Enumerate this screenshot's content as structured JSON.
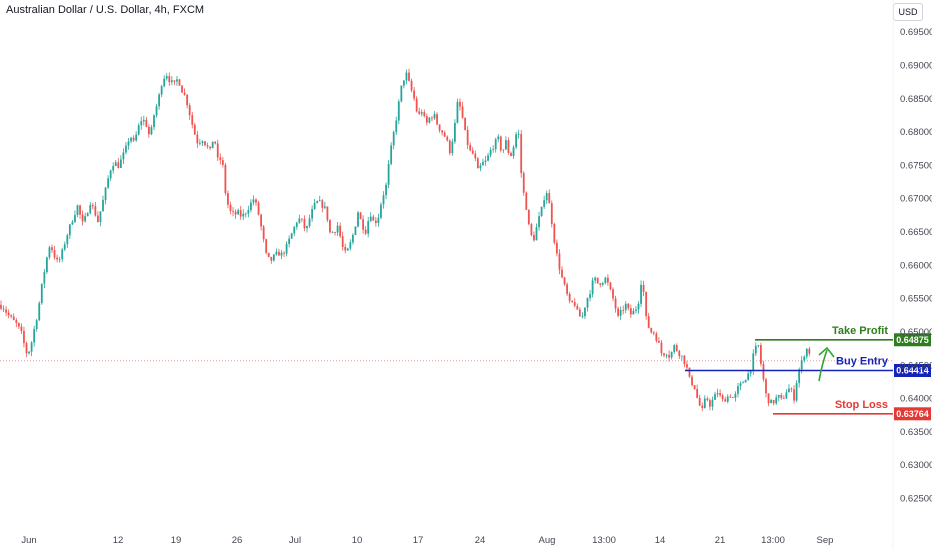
{
  "header": {
    "title": "Australian Dollar / U.S. Dollar, 4h, FXCM",
    "currency": "USD"
  },
  "colors": {
    "up": "#26a69a",
    "down": "#ef5350",
    "take_profit": "#2f7d1f",
    "entry": "#1424b8",
    "stop": "#e53935",
    "arrow": "#2fa52f"
  },
  "chart_data": {
    "type": "candlestick",
    "title": "Australian Dollar / U.S. Dollar, 4h, FXCM",
    "ylim": [
      0.6235,
      0.6975
    ],
    "y_ticks": [
      "0.69500",
      "0.69000",
      "0.68500",
      "0.68000",
      "0.67500",
      "0.67000",
      "0.66500",
      "0.66000",
      "0.65500",
      "0.65000",
      "0.64500",
      "0.64000",
      "0.63500",
      "0.63000",
      "0.62500"
    ],
    "x_ticks": [
      "Jun",
      "12",
      "19",
      "26",
      "Jul",
      "10",
      "17",
      "24",
      "Aug",
      "13:00",
      "14",
      "21",
      "13:00",
      "Sep"
    ],
    "grid": false,
    "price_path": [
      [
        0,
        0.654
      ],
      [
        4,
        0.6535
      ],
      [
        8,
        0.6525
      ],
      [
        12,
        0.6518
      ],
      [
        17,
        0.651
      ],
      [
        22,
        0.6495
      ],
      [
        26,
        0.6468
      ],
      [
        30,
        0.6472
      ],
      [
        34,
        0.6502
      ],
      [
        38,
        0.653
      ],
      [
        42,
        0.657
      ],
      [
        46,
        0.6605
      ],
      [
        50,
        0.6632
      ],
      [
        54,
        0.6615
      ],
      [
        58,
        0.6602
      ],
      [
        62,
        0.6618
      ],
      [
        66,
        0.664
      ],
      [
        70,
        0.6658
      ],
      [
        74,
        0.6675
      ],
      [
        78,
        0.669
      ],
      [
        82,
        0.666
      ],
      [
        86,
        0.6672
      ],
      [
        90,
        0.6695
      ],
      [
        94,
        0.6682
      ],
      [
        98,
        0.6665
      ],
      [
        102,
        0.669
      ],
      [
        106,
        0.6715
      ],
      [
        110,
        0.6742
      ],
      [
        114,
        0.6755
      ],
      [
        118,
        0.6748
      ],
      [
        122,
        0.676
      ],
      [
        126,
        0.6775
      ],
      [
        130,
        0.6795
      ],
      [
        134,
        0.6782
      ],
      [
        138,
        0.6805
      ],
      [
        142,
        0.682
      ],
      [
        146,
        0.6812
      ],
      [
        150,
        0.679
      ],
      [
        154,
        0.6825
      ],
      [
        158,
        0.6845
      ],
      [
        162,
        0.6875
      ],
      [
        166,
        0.6888
      ],
      [
        170,
        0.6876
      ],
      [
        174,
        0.687
      ],
      [
        178,
        0.688
      ],
      [
        182,
        0.6862
      ],
      [
        186,
        0.685
      ],
      [
        190,
        0.6825
      ],
      [
        194,
        0.68
      ],
      [
        198,
        0.6782
      ],
      [
        202,
        0.679
      ],
      [
        206,
        0.678
      ],
      [
        210,
        0.677
      ],
      [
        214,
        0.6795
      ],
      [
        218,
        0.6755
      ],
      [
        222,
        0.676
      ],
      [
        226,
        0.67
      ],
      [
        230,
        0.668
      ],
      [
        234,
        0.6675
      ],
      [
        238,
        0.6678
      ],
      [
        242,
        0.6672
      ],
      [
        246,
        0.668
      ],
      [
        250,
        0.669
      ],
      [
        254,
        0.67
      ],
      [
        258,
        0.668
      ],
      [
        262,
        0.665
      ],
      [
        266,
        0.6615
      ],
      [
        270,
        0.6605
      ],
      [
        274,
        0.6612
      ],
      [
        278,
        0.6618
      ],
      [
        282,
        0.6615
      ],
      [
        286,
        0.6625
      ],
      [
        290,
        0.664
      ],
      [
        294,
        0.6655
      ],
      [
        298,
        0.667
      ],
      [
        302,
        0.6665
      ],
      [
        306,
        0.665
      ],
      [
        310,
        0.6672
      ],
      [
        314,
        0.6688
      ],
      [
        318,
        0.6695
      ],
      [
        322,
        0.669
      ],
      [
        326,
        0.6682
      ],
      [
        330,
        0.6648
      ],
      [
        334,
        0.665
      ],
      [
        338,
        0.666
      ],
      [
        342,
        0.6628
      ],
      [
        346,
        0.6615
      ],
      [
        350,
        0.663
      ],
      [
        354,
        0.665
      ],
      [
        358,
        0.668
      ],
      [
        362,
        0.666
      ],
      [
        366,
        0.665
      ],
      [
        370,
        0.668
      ],
      [
        374,
        0.6662
      ],
      [
        378,
        0.667
      ],
      [
        382,
        0.67
      ],
      [
        386,
        0.6718
      ],
      [
        390,
        0.6765
      ],
      [
        394,
        0.68
      ],
      [
        398,
        0.6835
      ],
      [
        402,
        0.6872
      ],
      [
        406,
        0.6888
      ],
      [
        410,
        0.6868
      ],
      [
        414,
        0.685
      ],
      [
        418,
        0.6822
      ],
      [
        422,
        0.6832
      ],
      [
        426,
        0.681
      ],
      [
        430,
        0.6822
      ],
      [
        434,
        0.6825
      ],
      [
        438,
        0.6808
      ],
      [
        442,
        0.68
      ],
      [
        446,
        0.679
      ],
      [
        450,
        0.677
      ],
      [
        454,
        0.68
      ],
      [
        458,
        0.6848
      ],
      [
        462,
        0.6825
      ],
      [
        466,
        0.679
      ],
      [
        470,
        0.677
      ],
      [
        474,
        0.6765
      ],
      [
        478,
        0.674
      ],
      [
        482,
        0.6752
      ],
      [
        486,
        0.6755
      ],
      [
        490,
        0.677
      ],
      [
        494,
        0.678
      ],
      [
        498,
        0.679
      ],
      [
        502,
        0.6768
      ],
      [
        506,
        0.6785
      ],
      [
        510,
        0.676
      ],
      [
        514,
        0.678
      ],
      [
        518,
        0.681
      ],
      [
        522,
        0.672
      ],
      [
        526,
        0.669
      ],
      [
        530,
        0.6645
      ],
      [
        534,
        0.664
      ],
      [
        538,
        0.6665
      ],
      [
        542,
        0.6685
      ],
      [
        546,
        0.6715
      ],
      [
        550,
        0.6685
      ],
      [
        554,
        0.664
      ],
      [
        558,
        0.6605
      ],
      [
        562,
        0.658
      ],
      [
        566,
        0.656
      ],
      [
        570,
        0.654
      ],
      [
        574,
        0.6545
      ],
      [
        578,
        0.6525
      ],
      [
        582,
        0.652
      ],
      [
        586,
        0.6545
      ],
      [
        590,
        0.656
      ],
      [
        594,
        0.658
      ],
      [
        598,
        0.6572
      ],
      [
        602,
        0.6575
      ],
      [
        606,
        0.658
      ],
      [
        610,
        0.6562
      ],
      [
        614,
        0.6545
      ],
      [
        618,
        0.652
      ],
      [
        622,
        0.6532
      ],
      [
        626,
        0.654
      ],
      [
        630,
        0.6525
      ],
      [
        634,
        0.653
      ],
      [
        638,
        0.654
      ],
      [
        642,
        0.6585
      ],
      [
        646,
        0.652
      ],
      [
        650,
        0.65
      ],
      [
        654,
        0.6498
      ],
      [
        658,
        0.6485
      ],
      [
        662,
        0.6465
      ],
      [
        666,
        0.647
      ],
      [
        670,
        0.6462
      ],
      [
        674,
        0.6478
      ],
      [
        678,
        0.647
      ],
      [
        682,
        0.6462
      ],
      [
        686,
        0.645
      ],
      [
        690,
        0.6425
      ],
      [
        694,
        0.642
      ],
      [
        698,
        0.6395
      ],
      [
        702,
        0.638
      ],
      [
        706,
        0.6402
      ],
      [
        710,
        0.639
      ],
      [
        714,
        0.64
      ],
      [
        718,
        0.641
      ],
      [
        722,
        0.6395
      ],
      [
        726,
        0.64
      ],
      [
        730,
        0.6405
      ],
      [
        734,
        0.6398
      ],
      [
        738,
        0.6415
      ],
      [
        742,
        0.6422
      ],
      [
        746,
        0.6432
      ],
      [
        750,
        0.644
      ],
      [
        754,
        0.6468
      ],
      [
        758,
        0.6482
      ],
      [
        762,
        0.644
      ],
      [
        766,
        0.6405
      ],
      [
        770,
        0.6392
      ],
      [
        774,
        0.6395
      ],
      [
        778,
        0.6403
      ],
      [
        782,
        0.6395
      ],
      [
        786,
        0.641
      ],
      [
        790,
        0.6415
      ],
      [
        794,
        0.64
      ],
      [
        798,
        0.6438
      ],
      [
        802,
        0.6455
      ],
      [
        806,
        0.6475
      ],
      [
        810,
        0.6468
      ]
    ],
    "levels": [
      {
        "label": "Take Profit",
        "value": 0.64875,
        "value_label": "0.64875",
        "color": "#2f7d1f",
        "x_from": 755,
        "x_to": 893
      },
      {
        "label": "Buy Entry",
        "value": 0.64414,
        "value_label": "0.64414",
        "color": "#1424b8",
        "x_from": 685,
        "x_to": 893
      },
      {
        "label": "Stop Loss",
        "value": 0.63764,
        "value_label": "0.63764",
        "color": "#e53935",
        "x_from": 773,
        "x_to": 893
      }
    ],
    "reference_line": {
      "value": 0.6456,
      "color": "#ef9a9a"
    }
  }
}
